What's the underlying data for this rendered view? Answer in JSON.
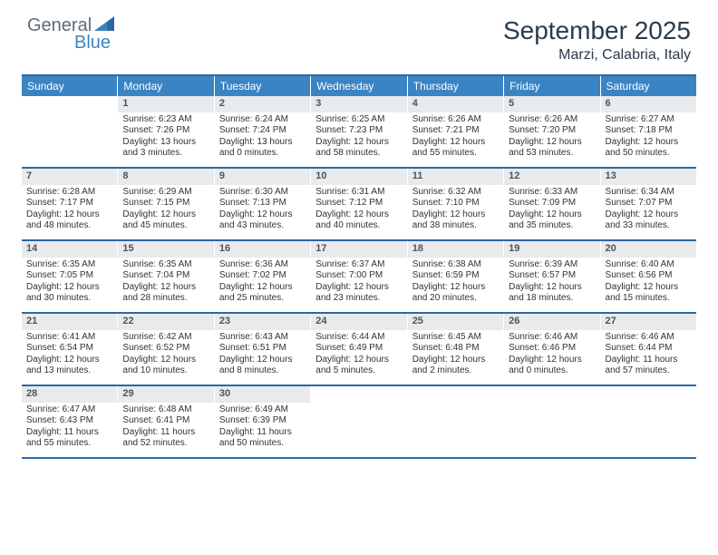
{
  "logo": {
    "general": "General",
    "blue": "Blue"
  },
  "title": "September 2025",
  "location": "Marzi, Calabria, Italy",
  "colors": {
    "header_bg": "#3b84c4",
    "header_text": "#ffffff",
    "daynum_bg": "#e8eaec",
    "daynum_text": "#4a5560",
    "border": "#2d69a0",
    "body_text": "#333333"
  },
  "daysOfWeek": [
    "Sunday",
    "Monday",
    "Tuesday",
    "Wednesday",
    "Thursday",
    "Friday",
    "Saturday"
  ],
  "weeks": [
    [
      {
        "n": "",
        "sr": "",
        "ss": "",
        "dl": ""
      },
      {
        "n": "1",
        "sr": "Sunrise: 6:23 AM",
        "ss": "Sunset: 7:26 PM",
        "dl": "Daylight: 13 hours and 3 minutes."
      },
      {
        "n": "2",
        "sr": "Sunrise: 6:24 AM",
        "ss": "Sunset: 7:24 PM",
        "dl": "Daylight: 13 hours and 0 minutes."
      },
      {
        "n": "3",
        "sr": "Sunrise: 6:25 AM",
        "ss": "Sunset: 7:23 PM",
        "dl": "Daylight: 12 hours and 58 minutes."
      },
      {
        "n": "4",
        "sr": "Sunrise: 6:26 AM",
        "ss": "Sunset: 7:21 PM",
        "dl": "Daylight: 12 hours and 55 minutes."
      },
      {
        "n": "5",
        "sr": "Sunrise: 6:26 AM",
        "ss": "Sunset: 7:20 PM",
        "dl": "Daylight: 12 hours and 53 minutes."
      },
      {
        "n": "6",
        "sr": "Sunrise: 6:27 AM",
        "ss": "Sunset: 7:18 PM",
        "dl": "Daylight: 12 hours and 50 minutes."
      }
    ],
    [
      {
        "n": "7",
        "sr": "Sunrise: 6:28 AM",
        "ss": "Sunset: 7:17 PM",
        "dl": "Daylight: 12 hours and 48 minutes."
      },
      {
        "n": "8",
        "sr": "Sunrise: 6:29 AM",
        "ss": "Sunset: 7:15 PM",
        "dl": "Daylight: 12 hours and 45 minutes."
      },
      {
        "n": "9",
        "sr": "Sunrise: 6:30 AM",
        "ss": "Sunset: 7:13 PM",
        "dl": "Daylight: 12 hours and 43 minutes."
      },
      {
        "n": "10",
        "sr": "Sunrise: 6:31 AM",
        "ss": "Sunset: 7:12 PM",
        "dl": "Daylight: 12 hours and 40 minutes."
      },
      {
        "n": "11",
        "sr": "Sunrise: 6:32 AM",
        "ss": "Sunset: 7:10 PM",
        "dl": "Daylight: 12 hours and 38 minutes."
      },
      {
        "n": "12",
        "sr": "Sunrise: 6:33 AM",
        "ss": "Sunset: 7:09 PM",
        "dl": "Daylight: 12 hours and 35 minutes."
      },
      {
        "n": "13",
        "sr": "Sunrise: 6:34 AM",
        "ss": "Sunset: 7:07 PM",
        "dl": "Daylight: 12 hours and 33 minutes."
      }
    ],
    [
      {
        "n": "14",
        "sr": "Sunrise: 6:35 AM",
        "ss": "Sunset: 7:05 PM",
        "dl": "Daylight: 12 hours and 30 minutes."
      },
      {
        "n": "15",
        "sr": "Sunrise: 6:35 AM",
        "ss": "Sunset: 7:04 PM",
        "dl": "Daylight: 12 hours and 28 minutes."
      },
      {
        "n": "16",
        "sr": "Sunrise: 6:36 AM",
        "ss": "Sunset: 7:02 PM",
        "dl": "Daylight: 12 hours and 25 minutes."
      },
      {
        "n": "17",
        "sr": "Sunrise: 6:37 AM",
        "ss": "Sunset: 7:00 PM",
        "dl": "Daylight: 12 hours and 23 minutes."
      },
      {
        "n": "18",
        "sr": "Sunrise: 6:38 AM",
        "ss": "Sunset: 6:59 PM",
        "dl": "Daylight: 12 hours and 20 minutes."
      },
      {
        "n": "19",
        "sr": "Sunrise: 6:39 AM",
        "ss": "Sunset: 6:57 PM",
        "dl": "Daylight: 12 hours and 18 minutes."
      },
      {
        "n": "20",
        "sr": "Sunrise: 6:40 AM",
        "ss": "Sunset: 6:56 PM",
        "dl": "Daylight: 12 hours and 15 minutes."
      }
    ],
    [
      {
        "n": "21",
        "sr": "Sunrise: 6:41 AM",
        "ss": "Sunset: 6:54 PM",
        "dl": "Daylight: 12 hours and 13 minutes."
      },
      {
        "n": "22",
        "sr": "Sunrise: 6:42 AM",
        "ss": "Sunset: 6:52 PM",
        "dl": "Daylight: 12 hours and 10 minutes."
      },
      {
        "n": "23",
        "sr": "Sunrise: 6:43 AM",
        "ss": "Sunset: 6:51 PM",
        "dl": "Daylight: 12 hours and 8 minutes."
      },
      {
        "n": "24",
        "sr": "Sunrise: 6:44 AM",
        "ss": "Sunset: 6:49 PM",
        "dl": "Daylight: 12 hours and 5 minutes."
      },
      {
        "n": "25",
        "sr": "Sunrise: 6:45 AM",
        "ss": "Sunset: 6:48 PM",
        "dl": "Daylight: 12 hours and 2 minutes."
      },
      {
        "n": "26",
        "sr": "Sunrise: 6:46 AM",
        "ss": "Sunset: 6:46 PM",
        "dl": "Daylight: 12 hours and 0 minutes."
      },
      {
        "n": "27",
        "sr": "Sunrise: 6:46 AM",
        "ss": "Sunset: 6:44 PM",
        "dl": "Daylight: 11 hours and 57 minutes."
      }
    ],
    [
      {
        "n": "28",
        "sr": "Sunrise: 6:47 AM",
        "ss": "Sunset: 6:43 PM",
        "dl": "Daylight: 11 hours and 55 minutes."
      },
      {
        "n": "29",
        "sr": "Sunrise: 6:48 AM",
        "ss": "Sunset: 6:41 PM",
        "dl": "Daylight: 11 hours and 52 minutes."
      },
      {
        "n": "30",
        "sr": "Sunrise: 6:49 AM",
        "ss": "Sunset: 6:39 PM",
        "dl": "Daylight: 11 hours and 50 minutes."
      },
      {
        "n": "",
        "sr": "",
        "ss": "",
        "dl": ""
      },
      {
        "n": "",
        "sr": "",
        "ss": "",
        "dl": ""
      },
      {
        "n": "",
        "sr": "",
        "ss": "",
        "dl": ""
      },
      {
        "n": "",
        "sr": "",
        "ss": "",
        "dl": ""
      }
    ]
  ]
}
